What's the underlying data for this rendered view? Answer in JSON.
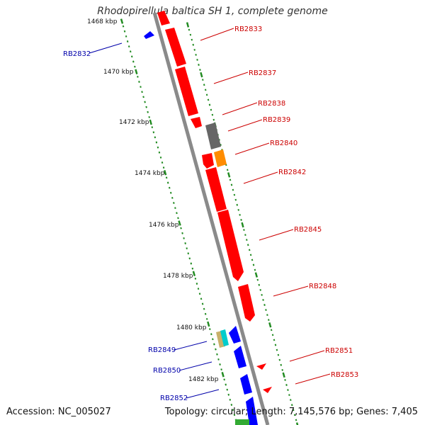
{
  "title": "Rhodopirellula baltica SH 1, complete genome",
  "accession": "Accession: NC_005027",
  "summary": "Topology: circular; Length: 7,145,576 bp; Genes: 7,405",
  "colors": {
    "backbone": "#8a8a8a",
    "forward_gene": "#ff0000",
    "reverse_gene": "#0000ff",
    "other_gene_gray": "#666666",
    "other_gene_orange": "#ff8c00",
    "tick_marks": "#228b22",
    "forward_label": "#cc0000",
    "reverse_label": "#0000aa"
  },
  "ticks": [
    {
      "label": "1468 kbp"
    },
    {
      "label": "1470 kbp"
    },
    {
      "label": "1472 kbp"
    },
    {
      "label": "1474 kbp"
    },
    {
      "label": "1476 kbp"
    },
    {
      "label": "1478 kbp"
    },
    {
      "label": "1480 kbp"
    },
    {
      "label": "1482 kbp"
    }
  ],
  "genes": [
    {
      "label": "RB2832",
      "strand": "reverse"
    },
    {
      "label": "RB2833",
      "strand": "forward"
    },
    {
      "label": "RB2837",
      "strand": "forward"
    },
    {
      "label": "RB2838",
      "strand": "forward"
    },
    {
      "label": "RB2839",
      "strand": "forward"
    },
    {
      "label": "RB2840",
      "strand": "forward"
    },
    {
      "label": "RB2842",
      "strand": "forward"
    },
    {
      "label": "RB2845",
      "strand": "forward"
    },
    {
      "label": "RB2848",
      "strand": "forward"
    },
    {
      "label": "RB2849",
      "strand": "reverse"
    },
    {
      "label": "RB2850",
      "strand": "reverse"
    },
    {
      "label": "RB2851",
      "strand": "forward"
    },
    {
      "label": "RB2852",
      "strand": "reverse"
    },
    {
      "label": "RB2853",
      "strand": "forward"
    }
  ]
}
